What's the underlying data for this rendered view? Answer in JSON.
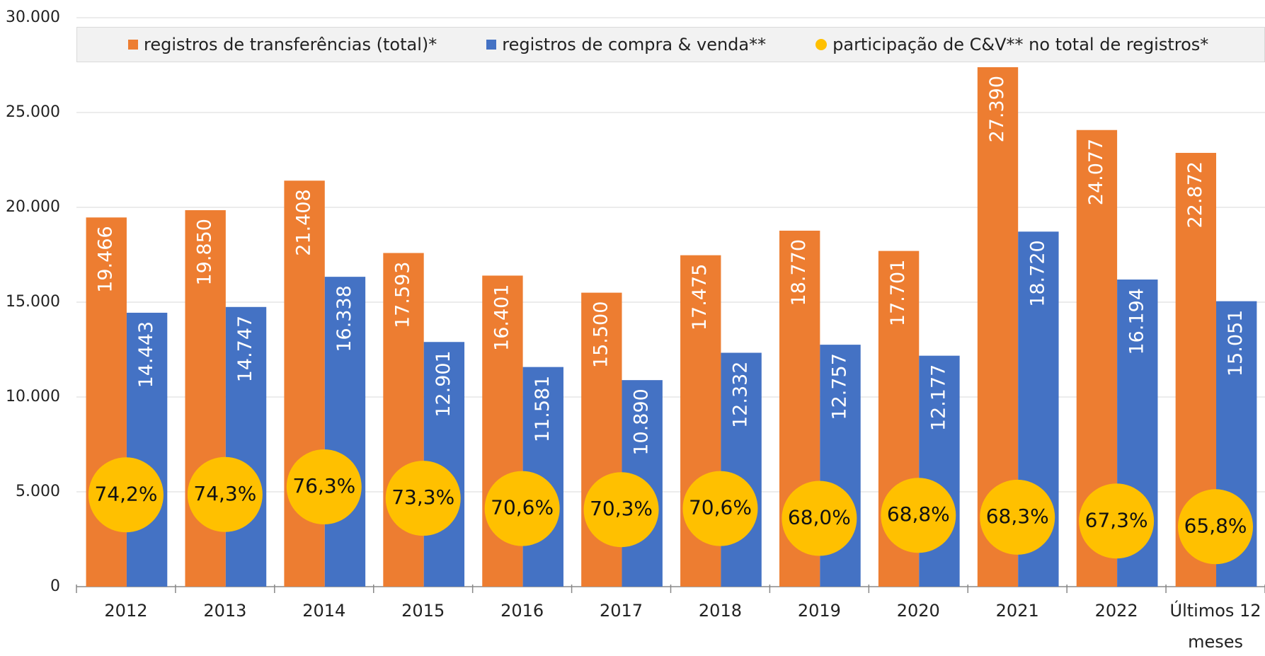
{
  "chart_data": {
    "type": "bar",
    "categories": [
      "2012",
      "2013",
      "2014",
      "2015",
      "2016",
      "2017",
      "2018",
      "2019",
      "2020",
      "2021",
      "2022",
      "Últimos 12 meses"
    ],
    "series": [
      {
        "name": "registros de transferências (total)*",
        "color": "#ed7d31",
        "values": [
          19466,
          19850,
          21408,
          17593,
          16401,
          15500,
          17475,
          18770,
          17701,
          27390,
          24077,
          22872
        ],
        "value_labels": [
          "19.466",
          "19.850",
          "21.408",
          "17.593",
          "16.401",
          "15.500",
          "17.475",
          "18.770",
          "17.701",
          "27.390",
          "24.077",
          "22.872"
        ]
      },
      {
        "name": "registros de compra & venda**",
        "color": "#4472c4",
        "values": [
          14443,
          14747,
          16338,
          12901,
          11581,
          10890,
          12332,
          12757,
          12177,
          18720,
          16194,
          15051
        ],
        "value_labels": [
          "14.443",
          "14.747",
          "16.338",
          "12.901",
          "11.581",
          "10.890",
          "12.332",
          "12.757",
          "12.177",
          "18.720",
          "16.194",
          "15.051"
        ]
      },
      {
        "name": "participação de C&V** no total de registros*",
        "color": "#ffc000",
        "type": "scatter",
        "axis": "y2",
        "values": [
          74.2,
          74.3,
          76.3,
          73.3,
          70.6,
          70.3,
          70.6,
          68.0,
          68.8,
          68.3,
          67.3,
          65.8
        ],
        "value_labels": [
          "74,2%",
          "74,3%",
          "76,3%",
          "73,3%",
          "70,6%",
          "70,3%",
          "70,6%",
          "68,0%",
          "68,8%",
          "68,3%",
          "67,3%",
          "65,8%"
        ]
      }
    ],
    "ylim": [
      0,
      30000
    ],
    "yticks": [
      0,
      {
        "value": 5000,
        "label": "5.000"
      },
      {
        "value": 10000,
        "label": "10.000"
      },
      {
        "value": 15000,
        "label": "15.000"
      },
      {
        "value": 20000,
        "label": "20.000"
      },
      {
        "value": 25000,
        "label": "25.000"
      },
      {
        "value": 30000,
        "label": "30.000"
      }
    ],
    "y2lim": [
      50,
      200
    ],
    "grid": true
  }
}
